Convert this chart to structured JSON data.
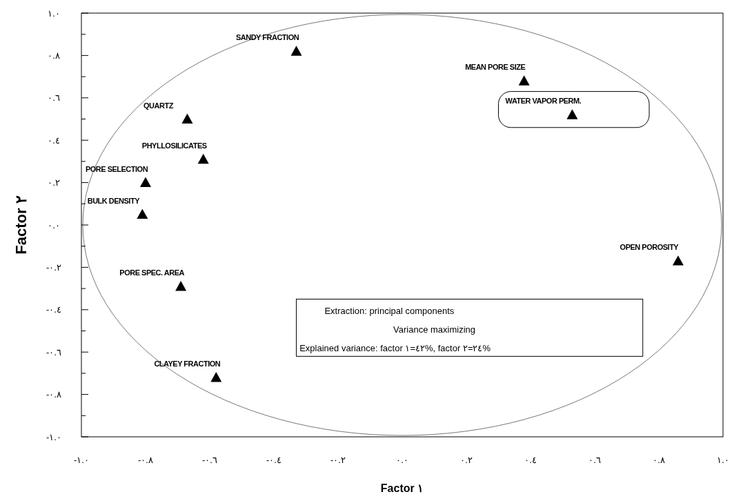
{
  "chart_data": {
    "type": "scatter",
    "xlabel": "Factor ١",
    "ylabel": "Factor ٢",
    "x": [
      -0.33,
      0.38,
      0.53,
      -0.67,
      -0.62,
      -0.8,
      -0.81,
      0.86,
      -0.69,
      -0.58
    ],
    "series": [
      {
        "color": "#000000",
        "values": [
          0.82,
          0.68,
          0.52,
          0.5,
          0.31,
          0.2,
          0.05,
          -0.17,
          -0.29,
          -0.72
        ]
      }
    ],
    "marker": "triangle",
    "grid": false,
    "xlim": [
      -1,
      1
    ],
    "ylim": [
      -1,
      1
    ],
    "xticks": [
      {
        "value": -1,
        "label": "-١.٠"
      },
      {
        "value": -0.8,
        "label": "-٠.٨"
      },
      {
        "value": -0.6,
        "label": "-٠.٦"
      },
      {
        "value": -0.4,
        "label": "-٠.٤"
      },
      {
        "value": -0.2,
        "label": "-٠.٢"
      },
      {
        "value": 0,
        "label": "٠.٠"
      },
      {
        "value": 0.2,
        "label": "٠.٢"
      },
      {
        "value": 0.4,
        "label": "٠.٤"
      },
      {
        "value": 0.6,
        "label": "٠.٦"
      },
      {
        "value": 0.8,
        "label": "٠.٨"
      },
      {
        "value": 1,
        "label": "١.٠"
      }
    ],
    "yticks": [
      {
        "value": -1,
        "label": "-١.٠"
      },
      {
        "value": -0.9,
        "label": null
      },
      {
        "value": -0.8,
        "label": "-٠.٨"
      },
      {
        "value": -0.7,
        "label": null
      },
      {
        "value": -0.6,
        "label": "-٠.٦"
      },
      {
        "value": -0.5,
        "label": null
      },
      {
        "value": -0.4,
        "label": "-٠.٤"
      },
      {
        "value": -0.3,
        "label": null
      },
      {
        "value": -0.2,
        "label": "-٠.٢"
      },
      {
        "value": -0.1,
        "label": null
      },
      {
        "value": 0,
        "label": "٠.٠"
      },
      {
        "value": 0.1,
        "label": null
      },
      {
        "value": 0.2,
        "label": "٠.٢"
      },
      {
        "value": 0.3,
        "label": null
      },
      {
        "value": 0.4,
        "label": "٠.٤"
      },
      {
        "value": 0.5,
        "label": null
      },
      {
        "value": 0.6,
        "label": "٠.٦"
      },
      {
        "value": 0.7,
        "label": null
      },
      {
        "value": 0.8,
        "label": "٠.٨"
      },
      {
        "value": 0.9,
        "label": null
      },
      {
        "value": 1,
        "label": "١.٠"
      }
    ],
    "annotations": [
      {
        "text": "SANDY FRACTION",
        "x": -0.33,
        "y": 0.82
      },
      {
        "text": "MEAN PORE SIZE",
        "x": 0.38,
        "y": 0.68
      },
      {
        "text": "WATER VAPOR PERM.",
        "x": 0.53,
        "y": 0.52
      },
      {
        "text": "QUARTZ",
        "x": -0.67,
        "y": 0.5
      },
      {
        "text": "PHYLLOSILICATES",
        "x": -0.62,
        "y": 0.31
      },
      {
        "text": "PORE SELECTION",
        "x": -0.8,
        "y": 0.2
      },
      {
        "text": "BULK DENSITY",
        "x": -0.81,
        "y": 0.05
      },
      {
        "text": "OPEN POROSITY",
        "x": 0.86,
        "y": -0.17
      },
      {
        "text": "PORE SPEC. AREA",
        "x": -0.69,
        "y": -0.29
      },
      {
        "text": "CLAYEY FRACTION",
        "x": -0.58,
        "y": -0.72
      },
      "Extraction: principal components",
      "Variance maximizing",
      "Explained variance: factor ١=٤٢%, factor ٢=٢٤%"
    ]
  }
}
